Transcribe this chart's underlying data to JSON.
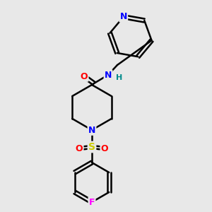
{
  "bg_color": "#e8e8e8",
  "bond_color": "#000000",
  "bond_width": 1.8,
  "atom_colors": {
    "N": "#0000ff",
    "O": "#ff0000",
    "F": "#ff00ff",
    "S": "#cccc00",
    "H": "#008b8b"
  },
  "font_size": 9,
  "fig_size": [
    3.0,
    3.0
  ],
  "dpi": 100
}
